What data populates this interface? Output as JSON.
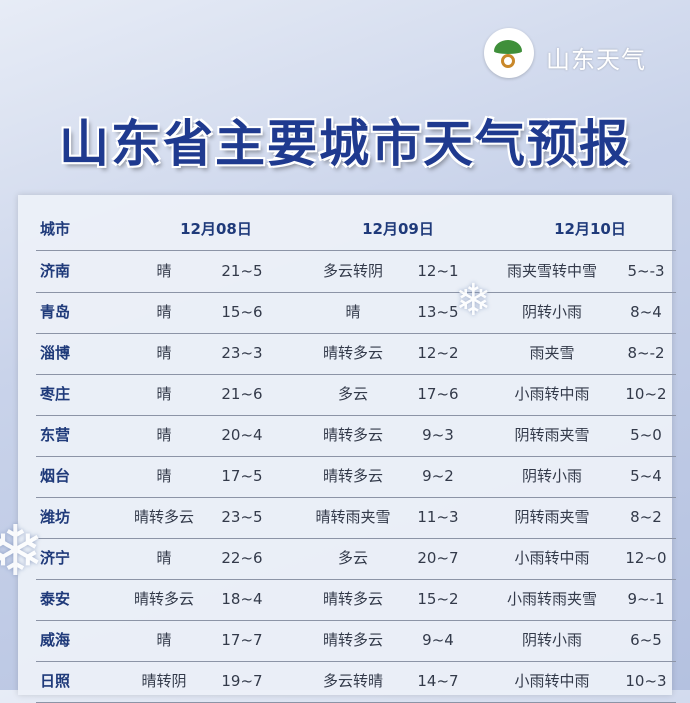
{
  "brand": {
    "name": "山东天气",
    "logo_icon": "shandong-weather-logo"
  },
  "title": "山东省主要城市天气预报",
  "table": {
    "headers": [
      "城市",
      "12月08日",
      "12月09日",
      "12月10日"
    ],
    "rows": [
      {
        "city": "济南",
        "w1": "晴",
        "t1": "21~5",
        "w2": "多云转阴",
        "t2": "12~1",
        "w3": "雨夹雪转中雪",
        "t3": "5~-3"
      },
      {
        "city": "青岛",
        "w1": "晴",
        "t1": "15~6",
        "w2": "晴",
        "t2": "13~5",
        "w3": "阴转小雨",
        "t3": "8~4"
      },
      {
        "city": "淄博",
        "w1": "晴",
        "t1": "23~3",
        "w2": "晴转多云",
        "t2": "12~2",
        "w3": "雨夹雪",
        "t3": "8~-2"
      },
      {
        "city": "枣庄",
        "w1": "晴",
        "t1": "21~6",
        "w2": "多云",
        "t2": "17~6",
        "w3": "小雨转中雨",
        "t3": "10~2"
      },
      {
        "city": "东营",
        "w1": "晴",
        "t1": "20~4",
        "w2": "晴转多云",
        "t2": "9~3",
        "w3": "阴转雨夹雪",
        "t3": "5~0"
      },
      {
        "city": "烟台",
        "w1": "晴",
        "t1": "17~5",
        "w2": "晴转多云",
        "t2": "9~2",
        "w3": "阴转小雨",
        "t3": "5~4"
      },
      {
        "city": "潍坊",
        "w1": "晴转多云",
        "t1": "23~5",
        "w2": "晴转雨夹雪",
        "t2": "11~3",
        "w3": "阴转雨夹雪",
        "t3": "8~2"
      },
      {
        "city": "济宁",
        "w1": "晴",
        "t1": "22~6",
        "w2": "多云",
        "t2": "20~7",
        "w3": "小雨转中雨",
        "t3": "12~0"
      },
      {
        "city": "泰安",
        "w1": "晴转多云",
        "t1": "18~4",
        "w2": "晴转多云",
        "t2": "15~2",
        "w3": "小雨转雨夹雪",
        "t3": "9~-1"
      },
      {
        "city": "威海",
        "w1": "晴",
        "t1": "17~7",
        "w2": "晴转多云",
        "t2": "9~4",
        "w3": "阴转小雨",
        "t3": "6~5"
      },
      {
        "city": "日照",
        "w1": "晴转阴",
        "t1": "19~7",
        "w2": "多云转晴",
        "t2": "14~7",
        "w3": "小雨转中雨",
        "t3": "10~3"
      }
    ]
  },
  "colors": {
    "title": "#1f3a8f",
    "city": "#1f3a7a"
  }
}
